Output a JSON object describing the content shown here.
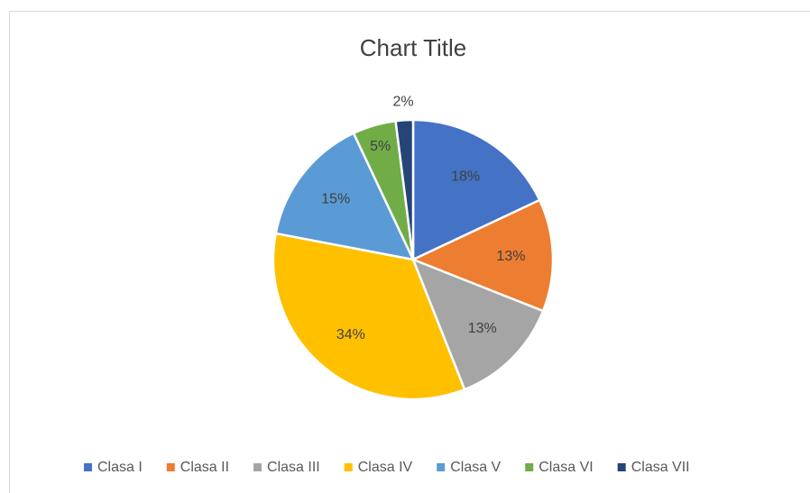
{
  "chart_data": {
    "type": "pie",
    "title": "Chart Title",
    "categories": [
      "Clasa I",
      "Clasa II",
      "Clasa III",
      "Clasa IV",
      "Clasa V",
      "Clasa VI",
      "Clasa VII"
    ],
    "values": [
      18,
      13,
      13,
      34,
      15,
      5,
      2
    ],
    "value_labels": [
      "18%",
      "13%",
      "13%",
      "34%",
      "15%",
      "5%",
      "2%"
    ],
    "colors": [
      "#4472c4",
      "#ed7d31",
      "#a5a5a5",
      "#ffc000",
      "#5b9bd5",
      "#70ad47",
      "#264478"
    ],
    "legend": "bottom"
  }
}
